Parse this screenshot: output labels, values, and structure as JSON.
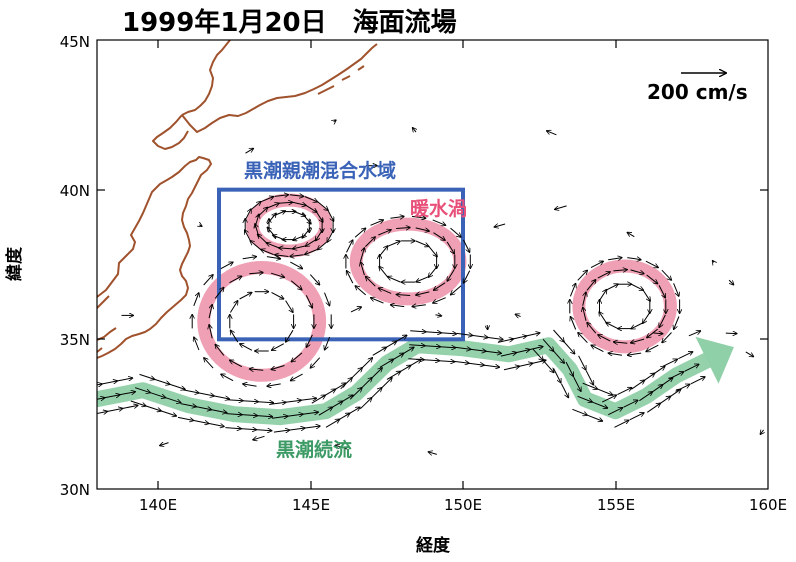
{
  "title": "1999年1月20日　海面流場",
  "axes": {
    "xlabel": "経度",
    "ylabel": "緯度",
    "x_ticks": [
      "140E",
      "145E",
      "150E",
      "155E",
      "160E"
    ],
    "y_ticks": [
      "30N",
      "35N",
      "40N",
      "45N"
    ]
  },
  "legend": {
    "scale_label": "200 cm/s"
  },
  "annotations": {
    "mixed_region": "黒潮親潮混合水域",
    "warm_eddy": "暖水渦",
    "extension": "黒潮続流"
  },
  "colors": {
    "coastline": "#a0522d",
    "box": "#3a63b8",
    "eddy": "#f0a0b4",
    "eddy_text": "#e8507a",
    "current": "#8fd0a8",
    "current_text": "#3c9a64",
    "box_text": "#3a63b8"
  },
  "map_data": {
    "lon_range": [
      138,
      160
    ],
    "lat_range": [
      30,
      45
    ],
    "region_box": {
      "lon": [
        142,
        150
      ],
      "lat": [
        35,
        40
      ]
    },
    "eddies": [
      {
        "lon": 144.3,
        "lat": 38.8,
        "r_lon": 1.2,
        "r_lat": 0.85
      },
      {
        "lon": 148.2,
        "lat": 37.6,
        "r_lon": 1.7,
        "r_lat": 1.25
      },
      {
        "lon": 143.4,
        "lat": 35.6,
        "r_lon": 1.9,
        "r_lat": 1.8
      },
      {
        "lon": 155.3,
        "lat": 36.1,
        "r_lon": 1.5,
        "r_lat": 1.35
      }
    ],
    "current_path": [
      [
        138.0,
        33.0
      ],
      [
        139.5,
        33.3
      ],
      [
        141.0,
        32.8
      ],
      [
        142.5,
        32.5
      ],
      [
        144.0,
        32.4
      ],
      [
        145.5,
        32.6
      ],
      [
        146.5,
        33.2
      ],
      [
        147.5,
        34.2
      ],
      [
        148.5,
        34.8
      ],
      [
        150.0,
        34.7
      ],
      [
        151.5,
        34.5
      ],
      [
        152.8,
        34.8
      ],
      [
        153.5,
        34.0
      ],
      [
        154.0,
        33.0
      ],
      [
        155.0,
        32.6
      ],
      [
        156.0,
        33.1
      ],
      [
        157.0,
        33.8
      ],
      [
        158.0,
        34.3
      ]
    ]
  }
}
